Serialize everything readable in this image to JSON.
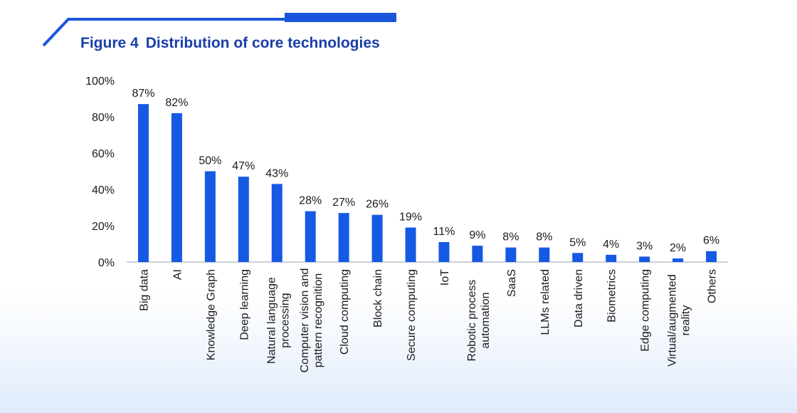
{
  "figure": {
    "number": "Figure 4",
    "title": "Distribution of core technologies"
  },
  "colors": {
    "bar": "#1659e3",
    "title": "#1a3ea8",
    "accent_line": "#1a56db",
    "text": "#1a1a1a"
  },
  "chart_data": {
    "type": "bar",
    "title": "Distribution of core technologies",
    "xlabel": "",
    "ylabel": "",
    "ylim": [
      0,
      100
    ],
    "yticks": [
      "0%",
      "20%",
      "40%",
      "60%",
      "80%",
      "100%"
    ],
    "yticks_values": [
      0,
      20,
      40,
      60,
      80,
      100
    ],
    "grid": false,
    "legend": "none",
    "categories": [
      [
        "Big data"
      ],
      [
        "AI"
      ],
      [
        "Knowledge Graph"
      ],
      [
        "Deep learning"
      ],
      [
        "Natural language",
        "processing"
      ],
      [
        "Computer vision and",
        "pattern recognition"
      ],
      [
        "Cloud computing"
      ],
      [
        "Block chain"
      ],
      [
        "Secure computing"
      ],
      [
        "IoT"
      ],
      [
        "Robotic process",
        "automation"
      ],
      [
        "SaaS"
      ],
      [
        "LLMs related"
      ],
      [
        "Data driven"
      ],
      [
        "Biometrics"
      ],
      [
        "Edge computing"
      ],
      [
        "Virtual/augmented",
        "reality"
      ],
      [
        "Others"
      ]
    ],
    "values": [
      87,
      82,
      50,
      47,
      43,
      28,
      27,
      26,
      19,
      11,
      9,
      8,
      8,
      5,
      4,
      3,
      2,
      6
    ],
    "value_labels": [
      "87%",
      "82%",
      "50%",
      "47%",
      "43%",
      "28%",
      "27%",
      "26%",
      "19%",
      "11%",
      "9%",
      "8%",
      "8%",
      "5%",
      "4%",
      "3%",
      "2%",
      "6%"
    ]
  }
}
